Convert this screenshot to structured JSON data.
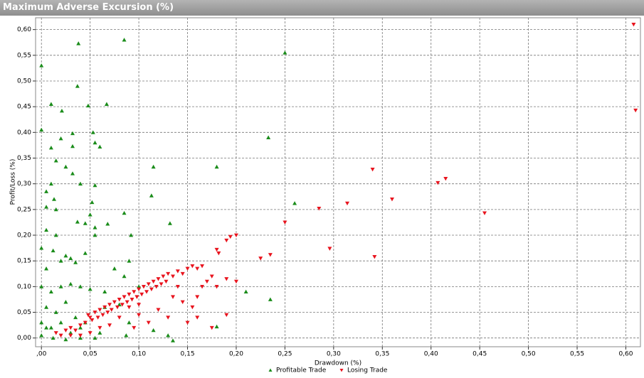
{
  "chart_data": {
    "type": "scatter",
    "title": "Maximum Adverse Excursion (%)",
    "xlabel": "Drawdown (%)",
    "ylabel": "Profit/Loss (%)",
    "grid": true,
    "xlim": [
      -0.006,
      0.615
    ],
    "ylim": [
      -0.017,
      0.623
    ],
    "xticks": [
      {
        "value": 0,
        "label": ",00"
      },
      {
        "value": 0.05,
        "label": "0,05"
      },
      {
        "value": 0.1,
        "label": "0,10"
      },
      {
        "value": 0.15,
        "label": "0,15"
      },
      {
        "value": 0.2,
        "label": "0,20"
      },
      {
        "value": 0.25,
        "label": "0,25"
      },
      {
        "value": 0.3,
        "label": "0,30"
      },
      {
        "value": 0.35,
        "label": "0,35"
      },
      {
        "value": 0.4,
        "label": "0,40"
      },
      {
        "value": 0.45,
        "label": "0,45"
      },
      {
        "value": 0.5,
        "label": "0,50"
      },
      {
        "value": 0.55,
        "label": "0,55"
      },
      {
        "value": 0.6,
        "label": "0,60"
      }
    ],
    "yticks": [
      {
        "value": 0,
        "label": "0,00"
      },
      {
        "value": 0.05,
        "label": "0,05"
      },
      {
        "value": 0.1,
        "label": "0,10"
      },
      {
        "value": 0.15,
        "label": "0,15"
      },
      {
        "value": 0.2,
        "label": "0,20"
      },
      {
        "value": 0.25,
        "label": "0,25"
      },
      {
        "value": 0.3,
        "label": "0,30"
      },
      {
        "value": 0.35,
        "label": "0,35"
      },
      {
        "value": 0.4,
        "label": "0,40"
      },
      {
        "value": 0.45,
        "label": "0,45"
      },
      {
        "value": 0.5,
        "label": "0,50"
      },
      {
        "value": 0.55,
        "label": "0,55"
      },
      {
        "value": 0.6,
        "label": "0,60"
      }
    ],
    "series": [
      {
        "name": "Profitable Trade",
        "color": "#1a8c1a",
        "marker": "triangle-up",
        "x": [
          0.0,
          0.0,
          0.038,
          0.085,
          0.25,
          0.037,
          0.01,
          0.048,
          0.067,
          0.021,
          0.02,
          0.032,
          0.053,
          0.01,
          0.032,
          0.055,
          0.06,
          0.233,
          0.015,
          0.025,
          0.115,
          0.18,
          0.032,
          0.04,
          0.055,
          0.005,
          0.01,
          0.013,
          0.113,
          0.26,
          0.005,
          0.015,
          0.052,
          0.05,
          0.085,
          0.037,
          0.045,
          0.055,
          0.068,
          0.132,
          0.005,
          0.015,
          0.055,
          0.092,
          0.0,
          0.012,
          0.025,
          0.03,
          0.045,
          0.02,
          0.035,
          0.005,
          0.075,
          0.09,
          0.0,
          0.01,
          0.02,
          0.03,
          0.04,
          0.05,
          0.065,
          0.085,
          0.1,
          0.21,
          0.235,
          0.005,
          0.015,
          0.025,
          0.035,
          0.045,
          0.065,
          0.08,
          0.09,
          0.0,
          0.005,
          0.01,
          0.02,
          0.03,
          0.04,
          0.06,
          0.087,
          0.115,
          0.13,
          0.135,
          0.18,
          0.0,
          0.012,
          0.025,
          0.04,
          0.055
        ],
        "values": [
          0.53,
          0.405,
          0.573,
          0.58,
          0.555,
          0.49,
          0.455,
          0.452,
          0.455,
          0.442,
          0.388,
          0.398,
          0.4,
          0.37,
          0.373,
          0.38,
          0.372,
          0.39,
          0.345,
          0.333,
          0.333,
          0.333,
          0.32,
          0.3,
          0.297,
          0.285,
          0.3,
          0.27,
          0.277,
          0.262,
          0.255,
          0.25,
          0.264,
          0.24,
          0.243,
          0.226,
          0.223,
          0.215,
          0.222,
          0.223,
          0.21,
          0.2,
          0.2,
          0.2,
          0.175,
          0.17,
          0.16,
          0.155,
          0.165,
          0.15,
          0.147,
          0.135,
          0.135,
          0.15,
          0.1,
          0.09,
          0.1,
          0.105,
          0.1,
          0.095,
          0.09,
          0.12,
          0.1,
          0.09,
          0.075,
          0.06,
          0.05,
          0.07,
          0.04,
          0.03,
          0.06,
          0.065,
          0.03,
          0.03,
          0.02,
          0.02,
          0.03,
          0.01,
          0.02,
          0.01,
          0.005,
          0.015,
          0.005,
          -0.005,
          0.022,
          0.005,
          0.0,
          -0.003,
          0.0,
          0.0
        ]
      },
      {
        "name": "Losing Trade",
        "color": "#e8141e",
        "marker": "triangle-down",
        "x": [
          0.608,
          0.61,
          0.34,
          0.415,
          0.407,
          0.36,
          0.314,
          0.285,
          0.455,
          0.25,
          0.2,
          0.194,
          0.19,
          0.18,
          0.182,
          0.235,
          0.225,
          0.296,
          0.342,
          0.015,
          0.02,
          0.025,
          0.03,
          0.035,
          0.04,
          0.045,
          0.048,
          0.05,
          0.052,
          0.055,
          0.058,
          0.06,
          0.063,
          0.065,
          0.068,
          0.07,
          0.072,
          0.075,
          0.078,
          0.08,
          0.083,
          0.085,
          0.088,
          0.09,
          0.093,
          0.095,
          0.098,
          0.1,
          0.103,
          0.105,
          0.108,
          0.11,
          0.113,
          0.115,
          0.118,
          0.12,
          0.123,
          0.125,
          0.128,
          0.13,
          0.135,
          0.14,
          0.145,
          0.15,
          0.155,
          0.16,
          0.165,
          0.17,
          0.165,
          0.16,
          0.155,
          0.15,
          0.16,
          0.175,
          0.18,
          0.19,
          0.2,
          0.19,
          0.175,
          0.13,
          0.12,
          0.11,
          0.1,
          0.095,
          0.07,
          0.06,
          0.05,
          0.04,
          0.03,
          0.08,
          0.09,
          0.1,
          0.14,
          0.145,
          0.135
        ],
        "values": [
          0.61,
          0.443,
          0.328,
          0.31,
          0.302,
          0.27,
          0.262,
          0.252,
          0.243,
          0.225,
          0.2,
          0.197,
          0.19,
          0.172,
          0.165,
          0.162,
          0.155,
          0.174,
          0.158,
          0.01,
          0.005,
          0.015,
          0.02,
          0.015,
          0.025,
          0.03,
          0.045,
          0.04,
          0.035,
          0.05,
          0.04,
          0.055,
          0.045,
          0.06,
          0.05,
          0.065,
          0.055,
          0.07,
          0.06,
          0.075,
          0.065,
          0.08,
          0.07,
          0.085,
          0.075,
          0.09,
          0.08,
          0.095,
          0.085,
          0.1,
          0.09,
          0.105,
          0.095,
          0.11,
          0.1,
          0.115,
          0.105,
          0.12,
          0.11,
          0.125,
          0.12,
          0.13,
          0.125,
          0.135,
          0.14,
          0.135,
          0.14,
          0.11,
          0.1,
          0.08,
          0.06,
          0.03,
          0.04,
          0.12,
          0.1,
          0.115,
          0.11,
          0.045,
          0.02,
          0.04,
          0.055,
          0.03,
          0.045,
          0.02,
          0.025,
          0.02,
          0.01,
          0.005,
          0.005,
          0.04,
          0.06,
          0.065,
          0.1,
          0.07,
          0.08
        ]
      }
    ]
  }
}
